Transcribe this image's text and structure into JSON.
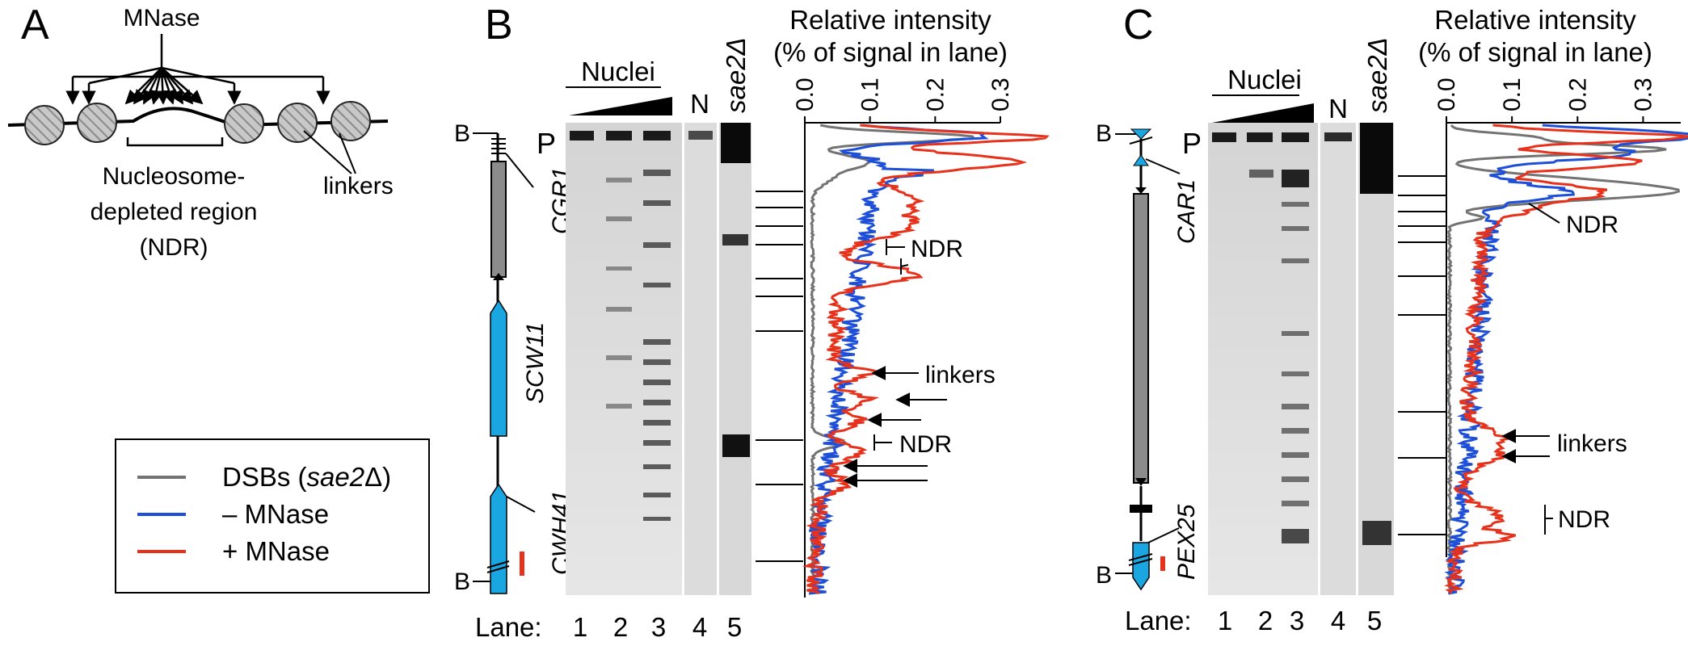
{
  "panel_a": {
    "letter": "A",
    "enzyme_label": "MNase",
    "ndr_label_lines": [
      "Nucleosome-",
      "depleted region",
      "(NDR)"
    ],
    "linkers_label": "linkers"
  },
  "legend": {
    "items": [
      {
        "prefix": "DSBs (",
        "italic": "sae2",
        "suffix": "Δ)",
        "color": "#737373"
      },
      {
        "prefix": "– MNase",
        "italic": "",
        "suffix": "",
        "color": "#1d4fd8"
      },
      {
        "prefix": "+ MNase",
        "italic": "",
        "suffix": "",
        "color": "#e8311a"
      }
    ]
  },
  "panel_b": {
    "letter": "B",
    "nuclei_label": "Nuclei",
    "n_label": "N",
    "mutant_label": "sae2Δ",
    "probe_label": "P",
    "b_label": "B",
    "genes": [
      "CGR1",
      "SCW11",
      "CWH41"
    ],
    "lane_prefix": "Lane:",
    "lanes": [
      "1",
      "2",
      "3",
      "4",
      "5"
    ],
    "annotations": {
      "ndr": "NDR",
      "linkers": "linkers"
    }
  },
  "panel_c": {
    "letter": "C",
    "nuclei_label": "Nuclei",
    "n_label": "N",
    "mutant_label": "sae2Δ",
    "probe_label": "P",
    "b_label": "B",
    "genes": [
      "CAR1",
      "PEX25"
    ],
    "lane_prefix": "Lane:",
    "lanes": [
      "1",
      "2",
      "3",
      "4",
      "5"
    ],
    "annotations": {
      "ndr": "NDR",
      "linkers": "linkers"
    }
  },
  "chart_data": [
    {
      "type": "line",
      "panel": "B",
      "title": "Relative intensity",
      "subtitle": "(% of signal in lane)",
      "ticks": [
        "0.0",
        "0.1",
        "0.2",
        "0.3"
      ],
      "xlim": [
        0,
        0.3
      ],
      "series": [
        {
          "name": "DSBs (sae2Δ)",
          "color": "#737373"
        },
        {
          "name": "– MNase",
          "color": "#1d4fd8"
        },
        {
          "name": "+ MNase",
          "color": "#e8311a"
        }
      ]
    },
    {
      "type": "line",
      "panel": "C",
      "title": "Relative intensity",
      "subtitle": "(% of signal in lane)",
      "ticks": [
        "0.0",
        "0.1",
        "0.2",
        "0.3"
      ],
      "xlim": [
        0,
        0.35
      ],
      "series": [
        {
          "name": "DSBs (sae2Δ)",
          "color": "#737373"
        },
        {
          "name": "– MNase",
          "color": "#1d4fd8"
        },
        {
          "name": "+ MNase",
          "color": "#e8311a"
        }
      ]
    }
  ]
}
